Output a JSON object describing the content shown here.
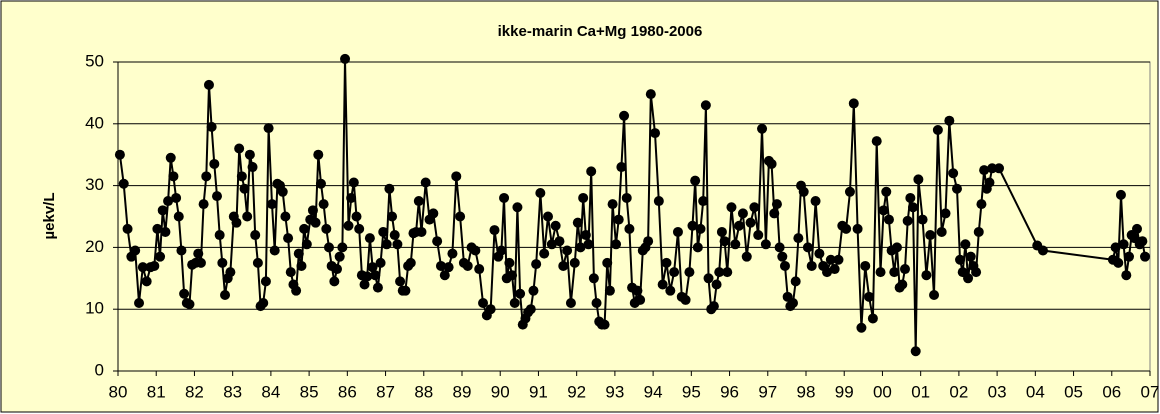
{
  "chart_data": {
    "type": "line",
    "title": "ikke-marin Ca+Mg 1980-2006",
    "y_label": "µekv/L",
    "color": "#000000",
    "grid": true,
    "xlim": [
      1980,
      2007
    ],
    "xticks": [
      {
        "value": 1980,
        "label": "80"
      },
      {
        "value": 1981,
        "label": "81"
      },
      {
        "value": 1982,
        "label": "82"
      },
      {
        "value": 1983,
        "label": "83"
      },
      {
        "value": 1984,
        "label": "84"
      },
      {
        "value": 1985,
        "label": "85"
      },
      {
        "value": 1986,
        "label": "86"
      },
      {
        "value": 1987,
        "label": "87"
      },
      {
        "value": 1988,
        "label": "88"
      },
      {
        "value": 1989,
        "label": "89"
      },
      {
        "value": 1990,
        "label": "90"
      },
      {
        "value": 1991,
        "label": "91"
      },
      {
        "value": 1992,
        "label": "92"
      },
      {
        "value": 1993,
        "label": "93"
      },
      {
        "value": 1994,
        "label": "94"
      },
      {
        "value": 1995,
        "label": "95"
      },
      {
        "value": 1996,
        "label": "96"
      },
      {
        "value": 1997,
        "label": "97"
      },
      {
        "value": 1998,
        "label": "98"
      },
      {
        "value": 1999,
        "label": "99"
      },
      {
        "value": 2000,
        "label": "00"
      },
      {
        "value": 2001,
        "label": "01"
      },
      {
        "value": 2002,
        "label": "02"
      },
      {
        "value": 2003,
        "label": "03"
      },
      {
        "value": 2004,
        "label": "04"
      },
      {
        "value": 2005,
        "label": "05"
      },
      {
        "value": 2006,
        "label": "06"
      },
      {
        "value": 2007,
        "label": "07"
      }
    ],
    "ylim": [
      0,
      50
    ],
    "yticks": [
      0,
      10,
      20,
      30,
      40,
      50
    ],
    "x": [
      1980.05,
      1980.15,
      1980.25,
      1980.35,
      1980.45,
      1980.55,
      1980.65,
      1980.75,
      1980.85,
      1980.95,
      1981.03,
      1981.1,
      1981.17,
      1981.24,
      1981.31,
      1981.38,
      1981.45,
      1981.52,
      1981.59,
      1981.66,
      1981.73,
      1981.8,
      1981.87,
      1981.94,
      1982.03,
      1982.1,
      1982.17,
      1982.24,
      1982.31,
      1982.38,
      1982.45,
      1982.52,
      1982.59,
      1982.66,
      1982.73,
      1982.8,
      1982.87,
      1982.94,
      1983.03,
      1983.1,
      1983.17,
      1983.24,
      1983.31,
      1983.38,
      1983.45,
      1983.52,
      1983.59,
      1983.66,
      1983.73,
      1983.8,
      1983.87,
      1983.94,
      1984.03,
      1984.1,
      1984.17,
      1984.24,
      1984.31,
      1984.38,
      1984.45,
      1984.52,
      1984.59,
      1984.66,
      1984.73,
      1984.8,
      1984.87,
      1984.94,
      1985.03,
      1985.1,
      1985.17,
      1985.24,
      1985.31,
      1985.38,
      1985.45,
      1985.52,
      1985.59,
      1985.66,
      1985.73,
      1985.8,
      1985.87,
      1985.94,
      1986.03,
      1986.1,
      1986.17,
      1986.24,
      1986.31,
      1986.38,
      1986.45,
      1986.52,
      1986.59,
      1986.66,
      1986.73,
      1986.8,
      1986.87,
      1986.94,
      1987.03,
      1987.1,
      1987.17,
      1987.24,
      1987.31,
      1987.38,
      1987.45,
      1987.52,
      1987.59,
      1987.66,
      1987.73,
      1987.8,
      1987.87,
      1987.94,
      1988.05,
      1988.15,
      1988.25,
      1988.35,
      1988.45,
      1988.55,
      1988.65,
      1988.75,
      1988.85,
      1988.95,
      1989.05,
      1989.15,
      1989.25,
      1989.35,
      1989.45,
      1989.55,
      1989.65,
      1989.75,
      1989.85,
      1989.95,
      1990.03,
      1990.1,
      1990.17,
      1990.24,
      1990.31,
      1990.38,
      1990.45,
      1990.52,
      1990.59,
      1990.66,
      1990.73,
      1990.8,
      1990.87,
      1990.94,
      1991.05,
      1991.15,
      1991.25,
      1991.35,
      1991.45,
      1991.55,
      1991.65,
      1991.75,
      1991.85,
      1991.95,
      1992.03,
      1992.1,
      1992.17,
      1992.24,
      1992.31,
      1992.38,
      1992.45,
      1992.52,
      1992.59,
      1992.66,
      1992.73,
      1992.8,
      1992.87,
      1992.94,
      1993.03,
      1993.1,
      1993.17,
      1993.24,
      1993.31,
      1993.38,
      1993.45,
      1993.52,
      1993.59,
      1993.66,
      1993.73,
      1993.8,
      1993.87,
      1993.94,
      1994.05,
      1994.15,
      1994.25,
      1994.35,
      1994.45,
      1994.55,
      1994.65,
      1994.75,
      1994.85,
      1994.95,
      1995.03,
      1995.1,
      1995.17,
      1995.24,
      1995.31,
      1995.38,
      1995.45,
      1995.52,
      1995.59,
      1995.66,
      1995.73,
      1995.8,
      1995.87,
      1995.94,
      1996.05,
      1996.15,
      1996.25,
      1996.35,
      1996.45,
      1996.55,
      1996.65,
      1996.75,
      1996.85,
      1996.95,
      1997.03,
      1997.1,
      1997.17,
      1997.24,
      1997.31,
      1997.38,
      1997.45,
      1997.52,
      1997.59,
      1997.66,
      1997.73,
      1997.8,
      1997.87,
      1997.94,
      1998.05,
      1998.15,
      1998.25,
      1998.35,
      1998.45,
      1998.55,
      1998.65,
      1998.75,
      1998.85,
      1998.95,
      1999.05,
      1999.15,
      1999.25,
      1999.35,
      1999.45,
      1999.55,
      1999.65,
      1999.75,
      1999.85,
      1999.95,
      2000.03,
      2000.1,
      2000.17,
      2000.24,
      2000.31,
      2000.38,
      2000.45,
      2000.52,
      2000.59,
      2000.66,
      2000.73,
      2000.8,
      2000.87,
      2000.94,
      2001.05,
      2001.15,
      2001.25,
      2001.35,
      2001.45,
      2001.55,
      2001.65,
      2001.75,
      2001.85,
      2001.95,
      2002.03,
      2002.1,
      2002.17,
      2002.24,
      2002.31,
      2002.38,
      2002.45,
      2002.52,
      2002.59,
      2002.66,
      2002.73,
      2002.8,
      2002.87,
      2003.05,
      2004.05,
      2004.2,
      2006.03,
      2006.1,
      2006.17,
      2006.24,
      2006.31,
      2006.38,
      2006.45,
      2006.52,
      2006.59,
      2006.66,
      2006.73,
      2006.8,
      2006.87
    ],
    "values": [
      35,
      30.3,
      23,
      18.5,
      19.5,
      11,
      16.8,
      14.5,
      16.8,
      17,
      23,
      18.5,
      26,
      22.5,
      27.5,
      34.5,
      31.5,
      28,
      25,
      19.5,
      12.5,
      11,
      10.8,
      17.2,
      17.5,
      19,
      17.5,
      27,
      31.5,
      46.3,
      39.5,
      33.5,
      28.3,
      22,
      17.5,
      12.3,
      15,
      16,
      25,
      24,
      36,
      31.5,
      29.5,
      25,
      35,
      33,
      22,
      17.5,
      10.5,
      11,
      14.5,
      39.3,
      27,
      19.5,
      30.3,
      30,
      29,
      25,
      21.5,
      16,
      14,
      13,
      19,
      17,
      23,
      20.5,
      24.5,
      26,
      24,
      35,
      30.3,
      27,
      23,
      20,
      17,
      14.5,
      16.5,
      18.5,
      20,
      50.5,
      23.5,
      28,
      30.5,
      25,
      23,
      15.5,
      14,
      15.3,
      21.5,
      16.8,
      15.5,
      13.5,
      17.5,
      22.5,
      20.5,
      29.5,
      25,
      22,
      20.5,
      14.5,
      13,
      13,
      17,
      17.5,
      22.3,
      22.5,
      27.5,
      22.5,
      30.5,
      24.5,
      25.5,
      21,
      17,
      15.5,
      16.8,
      19,
      31.5,
      25,
      17.5,
      17,
      20,
      19.5,
      16.5,
      11,
      9,
      10,
      22.8,
      18.5,
      19.5,
      28,
      15,
      17.5,
      15.5,
      11,
      26.5,
      12.5,
      7.5,
      8.5,
      9.5,
      10,
      13,
      17.3,
      28.8,
      19,
      25,
      20.5,
      23.5,
      21,
      17,
      19.5,
      11,
      17.5,
      24,
      20,
      28,
      22,
      20.5,
      32.3,
      15,
      11,
      8,
      7.5,
      7.5,
      17.5,
      13,
      27,
      20.5,
      24.5,
      33,
      41.3,
      28,
      23,
      13.5,
      11,
      13,
      11.5,
      19.5,
      20,
      21,
      44.8,
      38.5,
      27.5,
      14,
      17.5,
      13,
      16,
      22.5,
      12,
      11.5,
      16,
      23.5,
      30.8,
      20,
      23,
      27.5,
      43,
      15,
      10,
      10.5,
      14,
      16,
      22.5,
      21,
      16,
      26.5,
      20.5,
      23.5,
      25.5,
      18.5,
      24,
      26.5,
      22,
      39.2,
      20.5,
      34,
      33.5,
      25.5,
      27,
      20,
      18.5,
      17,
      12,
      10.5,
      11,
      14.5,
      21.5,
      30,
      29,
      20,
      17,
      27.5,
      19,
      17,
      16,
      18,
      16.5,
      18,
      23.5,
      23,
      29,
      43.3,
      23,
      7,
      17,
      12,
      8.5,
      37.2,
      16,
      26,
      29,
      24.5,
      19.5,
      16,
      20,
      13.5,
      14,
      16.5,
      24.3,
      28,
      26.5,
      3.2,
      31,
      24.5,
      15.5,
      22,
      12.3,
      39,
      22.5,
      25.5,
      40.5,
      32,
      29.5,
      18,
      16,
      20.5,
      15,
      18.5,
      17,
      16,
      22.5,
      27,
      32.5,
      29.5,
      30.5,
      32.8,
      32.8,
      20.3,
      19.5,
      18,
      20,
      17.5,
      28.5,
      20.5,
      15.5,
      18.5,
      22,
      21.5,
      23,
      20.5,
      21,
      18.5
    ]
  }
}
